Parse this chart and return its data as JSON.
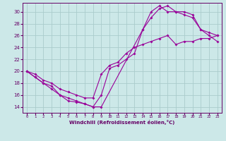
{
  "xlabel": "Windchill (Refroidissement éolien,°C)",
  "xlim": [
    -0.5,
    23.5
  ],
  "ylim": [
    13,
    31.5
  ],
  "xticks": [
    0,
    1,
    2,
    3,
    4,
    5,
    6,
    7,
    8,
    9,
    10,
    11,
    12,
    13,
    14,
    15,
    16,
    17,
    18,
    19,
    20,
    21,
    22,
    23
  ],
  "yticks": [
    14,
    16,
    18,
    20,
    22,
    24,
    26,
    28,
    30
  ],
  "background_color": "#cce8e8",
  "grid_color": "#aacccc",
  "line_color": "#990099",
  "line1_x": [
    0,
    1,
    2,
    3,
    4,
    5,
    6,
    7,
    8,
    9,
    10,
    11,
    12,
    13,
    14,
    15,
    16,
    17,
    18,
    19,
    20,
    21,
    22,
    23
  ],
  "line1_y": [
    20,
    19,
    18,
    17,
    16,
    15.5,
    15,
    14.5,
    14,
    16,
    20.5,
    21,
    22,
    23,
    27,
    29,
    30.5,
    31,
    30,
    29.5,
    29,
    27,
    26.5,
    26
  ],
  "line2_x": [
    0,
    1,
    2,
    3,
    4,
    5,
    6,
    7,
    8,
    9,
    14,
    15,
    16,
    17,
    18,
    19,
    20,
    21,
    22,
    23
  ],
  "line2_y": [
    20,
    19,
    18,
    17.5,
    16,
    15,
    14.8,
    14.5,
    14,
    14,
    27,
    30,
    31,
    30,
    30,
    30,
    29.5,
    27,
    26,
    25
  ],
  "line3_x": [
    0,
    1,
    2,
    3,
    4,
    5,
    6,
    7,
    8,
    9,
    10,
    11,
    12,
    13,
    14,
    15,
    16,
    17,
    18,
    19,
    20,
    21,
    22,
    23
  ],
  "line3_y": [
    20,
    19.5,
    18.5,
    18,
    17,
    16.5,
    16,
    15.5,
    15.5,
    19.5,
    21,
    21.5,
    23,
    24,
    24.5,
    25,
    25.5,
    26,
    24.5,
    25,
    25,
    25.5,
    25.5,
    26
  ]
}
